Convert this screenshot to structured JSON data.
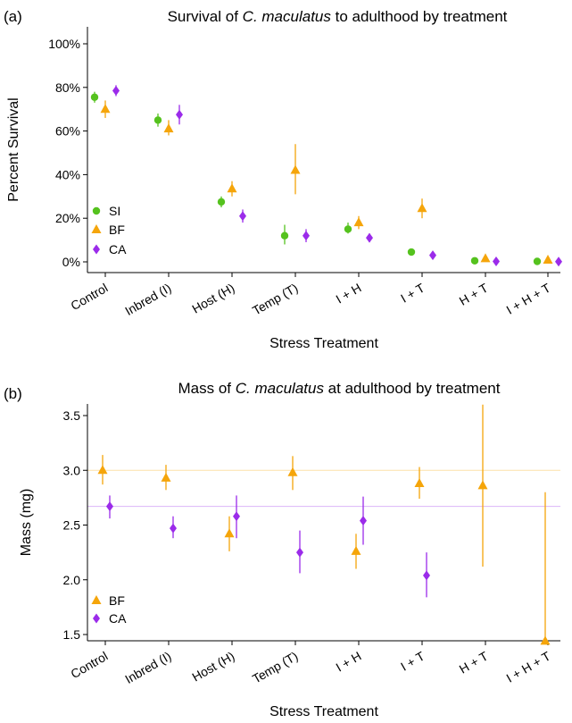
{
  "colors": {
    "SI": "#55c21e",
    "BF": "#f5a50a",
    "CA": "#9b2bea"
  },
  "chart_data": [
    {
      "type": "scatter",
      "panel_label": "(a)",
      "title_pre": "Survival of ",
      "title_italic": "C. maculatus",
      "title_post": " to adulthood by treatment",
      "xlabel": "Stress Treatment",
      "ylabel": "Percent Survival",
      "ylim": [
        0,
        100
      ],
      "yticks": [
        0,
        20,
        40,
        60,
        80,
        100
      ],
      "ytick_labels": [
        "0%",
        "20%",
        "40%",
        "60%",
        "80%",
        "100%"
      ],
      "categories": [
        "Control",
        "Inbred (I)",
        "Host (H)",
        "Temp (T)",
        "I + H",
        "I + T",
        "H + T",
        "I + H + T"
      ],
      "legend": "bottom-left",
      "series": [
        {
          "name": "SI",
          "marker": "circle",
          "values": [
            75.5,
            65,
            27.5,
            12,
            15,
            4.5,
            0.5,
            0.2
          ],
          "lower": [
            73,
            62,
            25,
            8,
            13,
            4,
            0.2,
            0.0
          ],
          "upper": [
            78,
            68,
            30,
            17,
            18,
            5.5,
            1,
            0.6
          ]
        },
        {
          "name": "BF",
          "marker": "triangle",
          "values": [
            70,
            61,
            33.5,
            42,
            18,
            24.5,
            1.5,
            0.8
          ],
          "lower": [
            66,
            58,
            30,
            31,
            15,
            20,
            1,
            0.3
          ],
          "upper": [
            74,
            65,
            37,
            54,
            21,
            29,
            3,
            1.5
          ]
        },
        {
          "name": "CA",
          "marker": "diamond",
          "values": [
            78.5,
            67.5,
            21,
            12,
            11,
            3,
            0.2,
            0.1
          ],
          "lower": [
            76,
            63,
            18,
            9,
            9,
            2.5,
            0.0,
            0.0
          ],
          "upper": [
            81,
            72,
            24,
            15,
            13,
            4,
            0.6,
            0.4
          ]
        }
      ]
    },
    {
      "type": "scatter",
      "panel_label": "(b)",
      "title_pre": "Mass of ",
      "title_italic": "C. maculatus",
      "title_post": " at adulthood by treatment",
      "xlabel": "Stress Treatment",
      "ylabel": "Mass (mg)",
      "ylim": [
        1.3,
        3.6
      ],
      "yticks": [
        1.5,
        2.0,
        2.5,
        3.0,
        3.5
      ],
      "ytick_labels": [
        "1.5",
        "2.0",
        "2.5",
        "3.0",
        "3.5"
      ],
      "categories": [
        "Control",
        "Inbred (I)",
        "Host (H)",
        "Temp (T)",
        "I + H",
        "I + T",
        "H + T",
        "I + H + T"
      ],
      "legend": "bottom-left",
      "reference_lines": [
        {
          "series": "BF",
          "value": 3.0
        },
        {
          "series": "CA",
          "value": 2.67
        }
      ],
      "series": [
        {
          "name": "BF",
          "marker": "triangle",
          "values": [
            3.0,
            2.93,
            2.42,
            2.98,
            2.26,
            2.88,
            2.86,
            1.44
          ],
          "lower": [
            2.87,
            2.82,
            2.26,
            2.82,
            2.1,
            2.74,
            2.12,
            1.05
          ],
          "upper": [
            3.14,
            3.05,
            2.58,
            3.13,
            2.42,
            3.03,
            3.6,
            2.8
          ]
        },
        {
          "name": "CA",
          "marker": "diamond",
          "values": [
            2.67,
            2.47,
            2.58,
            2.25,
            2.54,
            2.04,
            null,
            null
          ],
          "lower": [
            2.56,
            2.38,
            2.38,
            2.06,
            2.32,
            1.84,
            null,
            null
          ],
          "upper": [
            2.77,
            2.58,
            2.77,
            2.45,
            2.76,
            2.25,
            null,
            null
          ]
        }
      ]
    }
  ]
}
